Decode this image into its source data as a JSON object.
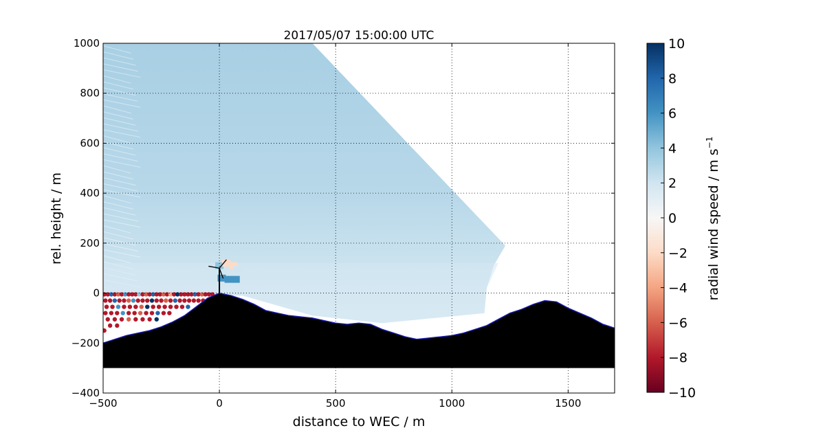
{
  "chart_data": {
    "type": "heatmap",
    "title": "2017/05/07 15:00:00 UTC",
    "xlabel": "distance to WEC / m",
    "ylabel": "rel. height / m",
    "xlim": [
      -500,
      1700
    ],
    "ylim": [
      -400,
      1000
    ],
    "xticks": [
      {
        "value": -500,
        "label": "−500"
      },
      {
        "value": 0,
        "label": "0"
      },
      {
        "value": 500,
        "label": "500"
      },
      {
        "value": 1000,
        "label": "1000"
      },
      {
        "value": 1500,
        "label": "1500"
      }
    ],
    "yticks": [
      {
        "value": -400,
        "label": "−400"
      },
      {
        "value": -200,
        "label": "−200"
      },
      {
        "value": 0,
        "label": "0"
      },
      {
        "value": 200,
        "label": "200"
      },
      {
        "value": 400,
        "label": "400"
      },
      {
        "value": 600,
        "label": "600"
      },
      {
        "value": 800,
        "label": "800"
      },
      {
        "value": 1000,
        "label": "1000"
      }
    ],
    "grid": true,
    "scan_sector": [
      [
        -500,
        1000
      ],
      [
        400,
        1000
      ],
      [
        1230,
        190
      ],
      [
        1180,
        110
      ],
      [
        1150,
        20
      ],
      [
        1140,
        -80
      ],
      [
        700,
        -120
      ],
      [
        400,
        -90
      ],
      [
        100,
        -10
      ],
      [
        -500,
        0
      ]
    ],
    "terrain_profile": [
      [
        -500,
        -200
      ],
      [
        -450,
        -185
      ],
      [
        -400,
        -170
      ],
      [
        -350,
        -160
      ],
      [
        -300,
        -150
      ],
      [
        -250,
        -135
      ],
      [
        -200,
        -115
      ],
      [
        -150,
        -90
      ],
      [
        -100,
        -55
      ],
      [
        -50,
        -20
      ],
      [
        0,
        0
      ],
      [
        50,
        -10
      ],
      [
        100,
        -25
      ],
      [
        150,
        -45
      ],
      [
        200,
        -70
      ],
      [
        250,
        -80
      ],
      [
        300,
        -90
      ],
      [
        350,
        -95
      ],
      [
        400,
        -100
      ],
      [
        450,
        -110
      ],
      [
        500,
        -120
      ],
      [
        550,
        -125
      ],
      [
        600,
        -120
      ],
      [
        650,
        -125
      ],
      [
        700,
        -145
      ],
      [
        750,
        -160
      ],
      [
        800,
        -175
      ],
      [
        850,
        -185
      ],
      [
        900,
        -180
      ],
      [
        950,
        -175
      ],
      [
        1000,
        -170
      ],
      [
        1050,
        -160
      ],
      [
        1100,
        -145
      ],
      [
        1150,
        -130
      ],
      [
        1200,
        -105
      ],
      [
        1250,
        -80
      ],
      [
        1300,
        -65
      ],
      [
        1350,
        -45
      ],
      [
        1400,
        -30
      ],
      [
        1450,
        -35
      ],
      [
        1500,
        -60
      ],
      [
        1550,
        -80
      ],
      [
        1600,
        -100
      ],
      [
        1650,
        -125
      ],
      [
        1700,
        -140
      ]
    ],
    "terrain_floor": -300,
    "wec_position": [
      0,
      0
    ],
    "hub_height": 100,
    "colorbar": {
      "label": "radial wind speed / m s",
      "label_superscript": "−1",
      "range": [
        -10,
        10
      ],
      "colormap": [
        "#67001f",
        "#b2182b",
        "#d6604d",
        "#f4a582",
        "#fddbc7",
        "#f7f7f7",
        "#d1e5f0",
        "#92c5de",
        "#4393c3",
        "#2166ac",
        "#053061"
      ],
      "ticks": [
        {
          "value": 10,
          "label": "10"
        },
        {
          "value": 8,
          "label": "8"
        },
        {
          "value": 6,
          "label": "6"
        },
        {
          "value": 4,
          "label": "4"
        },
        {
          "value": 2,
          "label": "2"
        },
        {
          "value": 0,
          "label": "0"
        },
        {
          "value": -2,
          "label": "−2"
        },
        {
          "value": -4,
          "label": "−4"
        },
        {
          "value": -6,
          "label": "−6"
        },
        {
          "value": -8,
          "label": "−8"
        },
        {
          "value": -10,
          "label": "−10"
        }
      ]
    },
    "colors": {
      "field_main": "#b8d8e9",
      "field_upper_left": "#a8cfe4",
      "field_low": "#d5e8f2",
      "terrain": "#000000",
      "terrain_edge": "#1a1aa8",
      "negative_noise": "#8b0a1f",
      "positive_noise": "#1f4e8c"
    },
    "noise_points": [
      [
        -495,
        -5,
        -9
      ],
      [
        -480,
        -5,
        -9
      ],
      [
        -465,
        -5,
        8
      ],
      [
        -450,
        -5,
        -9
      ],
      [
        -435,
        -5,
        -7
      ],
      [
        -420,
        -5,
        -9
      ],
      [
        -405,
        -5,
        6
      ],
      [
        -390,
        -5,
        -9
      ],
      [
        -375,
        -5,
        -8
      ],
      [
        -360,
        -5,
        -9
      ],
      [
        -345,
        -5,
        4
      ],
      [
        -330,
        -5,
        -9
      ],
      [
        -315,
        -5,
        -6
      ],
      [
        -300,
        -5,
        -9
      ],
      [
        -285,
        -5,
        8
      ],
      [
        -270,
        -5,
        -9
      ],
      [
        -255,
        -5,
        -9
      ],
      [
        -240,
        -5,
        -7
      ],
      [
        -225,
        -5,
        -9
      ],
      [
        -210,
        -5,
        -5
      ],
      [
        -195,
        -5,
        -9
      ],
      [
        -180,
        -5,
        9
      ],
      [
        -165,
        -5,
        -9
      ],
      [
        -150,
        -5,
        -8
      ],
      [
        -135,
        -5,
        -9
      ],
      [
        -120,
        -5,
        -9
      ],
      [
        -105,
        -5,
        7
      ],
      [
        -90,
        -5,
        -9
      ],
      [
        -75,
        -5,
        -6
      ],
      [
        -60,
        -5,
        -9
      ],
      [
        -45,
        -5,
        -9
      ],
      [
        -30,
        -5,
        -9
      ],
      [
        -490,
        -30,
        -9
      ],
      [
        -470,
        -30,
        -8
      ],
      [
        -450,
        -30,
        7
      ],
      [
        -430,
        -30,
        -9
      ],
      [
        -410,
        -30,
        -9
      ],
      [
        -390,
        -30,
        -7
      ],
      [
        -370,
        -30,
        5
      ],
      [
        -350,
        -30,
        -9
      ],
      [
        -330,
        -30,
        -9
      ],
      [
        -310,
        -30,
        -8
      ],
      [
        -290,
        -30,
        9
      ],
      [
        -270,
        -30,
        -9
      ],
      [
        -250,
        -30,
        -9
      ],
      [
        -230,
        -30,
        -6
      ],
      [
        -210,
        -30,
        -9
      ],
      [
        -190,
        -30,
        8
      ],
      [
        -170,
        -30,
        -9
      ],
      [
        -150,
        -30,
        -9
      ],
      [
        -130,
        -30,
        -9
      ],
      [
        -110,
        -30,
        -8
      ],
      [
        -90,
        -30,
        -9
      ],
      [
        -70,
        -30,
        -9
      ],
      [
        -485,
        -55,
        -9
      ],
      [
        -460,
        -55,
        -9
      ],
      [
        -435,
        -55,
        6
      ],
      [
        -410,
        -55,
        -8
      ],
      [
        -385,
        -55,
        -9
      ],
      [
        -360,
        -55,
        -9
      ],
      [
        -335,
        -55,
        -7
      ],
      [
        -310,
        -55,
        9
      ],
      [
        -285,
        -55,
        -9
      ],
      [
        -260,
        -55,
        -9
      ],
      [
        -235,
        -55,
        -8
      ],
      [
        -210,
        -55,
        -9
      ],
      [
        -185,
        -55,
        -9
      ],
      [
        -160,
        -55,
        -9
      ],
      [
        -135,
        -55,
        7
      ],
      [
        -490,
        -80,
        -9
      ],
      [
        -465,
        -80,
        -8
      ],
      [
        -440,
        -80,
        -9
      ],
      [
        -415,
        -80,
        5
      ],
      [
        -390,
        -80,
        -9
      ],
      [
        -365,
        -80,
        -9
      ],
      [
        -340,
        -80,
        -7
      ],
      [
        -315,
        -80,
        -9
      ],
      [
        -290,
        -80,
        -9
      ],
      [
        -265,
        -80,
        8
      ],
      [
        -240,
        -80,
        -9
      ],
      [
        -215,
        -80,
        -9
      ],
      [
        -480,
        -105,
        -8
      ],
      [
        -450,
        -105,
        -9
      ],
      [
        -420,
        -105,
        -9
      ],
      [
        -390,
        -105,
        -6
      ],
      [
        -360,
        -105,
        -9
      ],
      [
        -330,
        -105,
        -9
      ],
      [
        -300,
        -105,
        -9
      ],
      [
        -270,
        -105,
        9
      ],
      [
        -495,
        -150,
        -9
      ],
      [
        -470,
        -130,
        -8
      ],
      [
        -440,
        -130,
        -9
      ]
    ]
  }
}
